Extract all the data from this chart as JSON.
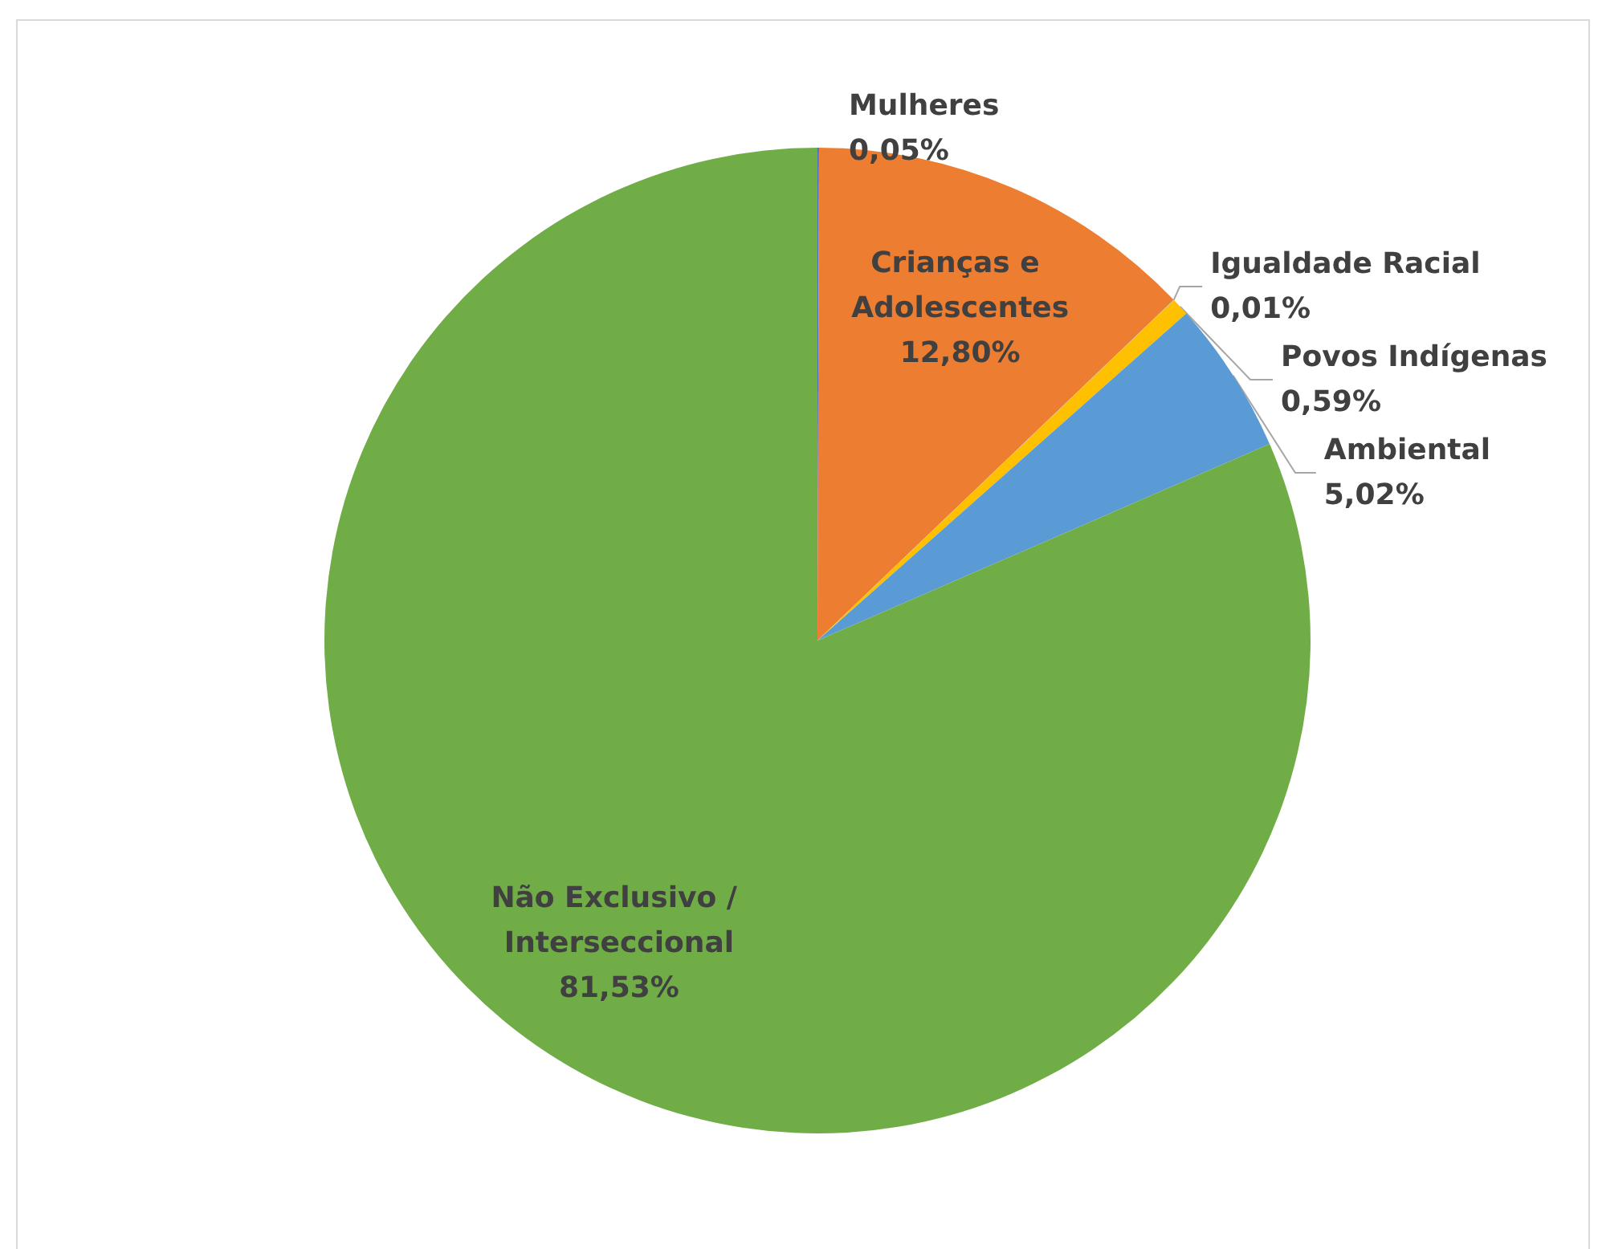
{
  "chart_data": {
    "type": "pie",
    "categories": [
      "Mulheres",
      "Crianças e Adolescentes",
      "Igualdade Racial",
      "Povos Indígenas",
      "Ambiental",
      "Não Exclusivo / Interseccional"
    ],
    "values": [
      0.05,
      12.8,
      0.01,
      0.59,
      5.02,
      81.53
    ],
    "value_labels": [
      "0,05%",
      "12,80%",
      "0,01%",
      "0,59%",
      "5,02%",
      "81,53%"
    ],
    "colors": [
      "#4472c4",
      "#ed7d31",
      "#a5a5a5",
      "#ffc000",
      "#5b9bd5",
      "#70ad47"
    ],
    "legend": false
  }
}
